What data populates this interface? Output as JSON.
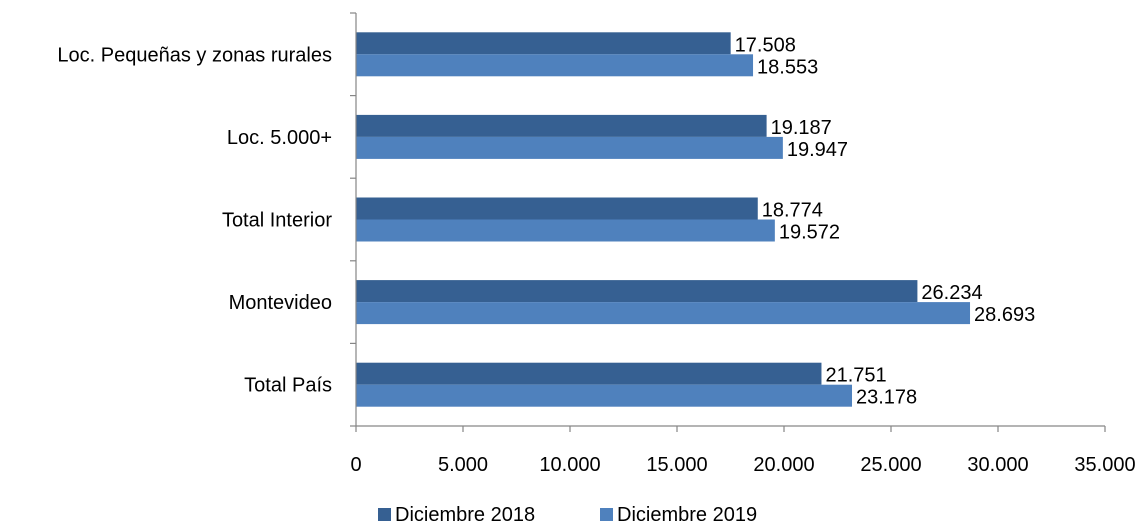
{
  "chart_data": {
    "type": "bar",
    "orientation": "horizontal",
    "title": "",
    "xlabel": "",
    "ylabel": "",
    "categories": [
      "Loc. Pequeñas y zonas rurales",
      "Loc. 5.000+",
      "Total Interior",
      "Montevideo",
      "Total País"
    ],
    "series": [
      {
        "name": "Diciembre 2018",
        "color": "#366092",
        "values": [
          17508,
          19187,
          18774,
          26234,
          21751
        ],
        "labels": [
          "17.508",
          "19.187",
          "18.774",
          "26.234",
          "21.751"
        ]
      },
      {
        "name": "Diciembre 2019",
        "color": "#4f81bd",
        "values": [
          18553,
          19947,
          19572,
          28693,
          23178
        ],
        "labels": [
          "18.553",
          "19.947",
          "19.572",
          "28.693",
          "23.178"
        ]
      }
    ],
    "xlim": [
      0,
      35000
    ],
    "ticks": [
      {
        "value": 0,
        "label": "0"
      },
      {
        "value": 5000,
        "label": "5.000"
      },
      {
        "value": 10000,
        "label": "10.000"
      },
      {
        "value": 15000,
        "label": "15.000"
      },
      {
        "value": 20000,
        "label": "20.000"
      },
      {
        "value": 25000,
        "label": "25.000"
      },
      {
        "value": 30000,
        "label": "30.000"
      },
      {
        "value": 35000,
        "label": "35.000"
      }
    ],
    "grid": false,
    "legend_position": "bottom"
  }
}
